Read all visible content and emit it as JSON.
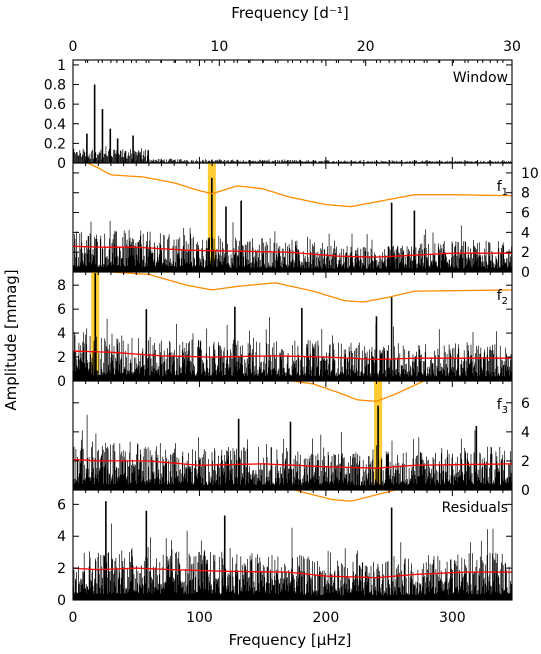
{
  "chart_data": {
    "type": "periodogram",
    "top_axis": {
      "label": "Frequency [d⁻¹]",
      "range": [
        0,
        30
      ],
      "ticks": [
        0,
        10,
        20,
        30
      ]
    },
    "bottom_axis": {
      "label": "Frequency [μHz]",
      "range": [
        0,
        347.2
      ],
      "ticks": [
        0,
        100,
        200,
        300
      ]
    },
    "ylabel": "Amplitude [mmag]",
    "colors": {
      "data": "#000000",
      "noise": "#ff0000",
      "noise_scaled": "#ff8c00",
      "highlight": "#ffcc33"
    },
    "panels": [
      {
        "name": "Window",
        "label": "Window",
        "ylim": [
          0,
          1.05
        ],
        "yticks": [
          0,
          0.2,
          0.4,
          0.6,
          0.8,
          1
        ],
        "tick_labels_side": "left",
        "peaks_uHz": [
          [
            17.1,
            0.8
          ],
          [
            11.0,
            0.3
          ],
          [
            23.3,
            0.55
          ],
          [
            29.5,
            0.35
          ],
          [
            35.3,
            0.25
          ],
          [
            41.5,
            0.12
          ],
          [
            47.5,
            0.28
          ],
          [
            53.5,
            0.08
          ],
          [
            59.5,
            0.13
          ]
        ]
      },
      {
        "name": "f1",
        "label": "f",
        "label_sub": "1",
        "ylim": [
          0,
          11
        ],
        "yticks": [
          0,
          2,
          4,
          6,
          8,
          10
        ],
        "tick_labels_side": "right",
        "highlight_uHz": 109.8,
        "peaks_uHz": [
          [
            109.8,
            9.5
          ],
          [
            121,
            6.6
          ],
          [
            133,
            7.2
          ],
          [
            252,
            7.0
          ],
          [
            270,
            6.2
          ]
        ],
        "noise": [
          [
            0,
            2.6
          ],
          [
            25,
            2.5
          ],
          [
            50,
            2.5
          ],
          [
            90,
            2.2
          ],
          [
            130,
            2.1
          ],
          [
            170,
            2.0
          ],
          [
            210,
            1.6
          ],
          [
            240,
            1.5
          ],
          [
            270,
            1.7
          ],
          [
            300,
            1.9
          ],
          [
            347,
            1.9
          ]
        ],
        "scaled_noise": [
          [
            8,
            11.2
          ],
          [
            20,
            10.5
          ],
          [
            30,
            9.8
          ],
          [
            55,
            9.6
          ],
          [
            80,
            9.0
          ],
          [
            100,
            8.2
          ],
          [
            110,
            7.9
          ],
          [
            130,
            8.7
          ],
          [
            150,
            8.4
          ],
          [
            170,
            7.6
          ],
          [
            200,
            6.8
          ],
          [
            220,
            6.6
          ],
          [
            245,
            7.2
          ],
          [
            270,
            7.8
          ],
          [
            300,
            7.8
          ],
          [
            347,
            7.7
          ]
        ]
      },
      {
        "name": "f2",
        "label": "f",
        "label_sub": "2",
        "ylim": [
          0,
          9.1
        ],
        "yticks": [
          0,
          2,
          4,
          6,
          8
        ],
        "tick_labels_side": "left",
        "highlight_uHz": 17.6,
        "peaks_uHz": [
          [
            17.6,
            9.0
          ],
          [
            58,
            6.0
          ],
          [
            128,
            6.2
          ],
          [
            181,
            6.1
          ],
          [
            240,
            5.4
          ],
          [
            252,
            7.1
          ]
        ],
        "noise": [
          [
            0,
            2.5
          ],
          [
            30,
            2.4
          ],
          [
            70,
            2.1
          ],
          [
            110,
            2.0
          ],
          [
            160,
            2.1
          ],
          [
            200,
            2.0
          ],
          [
            240,
            1.8
          ],
          [
            270,
            1.9
          ],
          [
            347,
            1.9
          ]
        ],
        "scaled_noise": [
          [
            15,
            9.2
          ],
          [
            60,
            8.9
          ],
          [
            90,
            8.0
          ],
          [
            110,
            7.6
          ],
          [
            130,
            7.9
          ],
          [
            160,
            8.2
          ],
          [
            190,
            7.5
          ],
          [
            215,
            6.7
          ],
          [
            230,
            6.6
          ],
          [
            250,
            7.0
          ],
          [
            270,
            7.5
          ],
          [
            347,
            7.6
          ]
        ]
      },
      {
        "name": "f3",
        "label": "f",
        "label_sub": "3",
        "ylim": [
          0,
          7.5
        ],
        "yticks": [
          0,
          2,
          4,
          6
        ],
        "tick_labels_side": "right",
        "highlight_uHz": 241.3,
        "peaks_uHz": [
          [
            241.3,
            5.8
          ],
          [
            131,
            4.9
          ],
          [
            172,
            4.7
          ],
          [
            319,
            4.4
          ]
        ],
        "noise": [
          [
            0,
            2.1
          ],
          [
            20,
            2.0
          ],
          [
            60,
            2.0
          ],
          [
            100,
            1.7
          ],
          [
            150,
            1.8
          ],
          [
            200,
            1.6
          ],
          [
            240,
            1.5
          ],
          [
            270,
            1.7
          ],
          [
            347,
            1.8
          ]
        ],
        "scaled_noise": [
          [
            165,
            7.6
          ],
          [
            190,
            7.3
          ],
          [
            210,
            6.7
          ],
          [
            225,
            6.2
          ],
          [
            240,
            6.1
          ],
          [
            255,
            6.6
          ],
          [
            270,
            7.2
          ],
          [
            280,
            7.6
          ]
        ]
      },
      {
        "name": "Residuals",
        "label": "Residuals",
        "ylim": [
          0,
          6.9
        ],
        "yticks": [
          0,
          2,
          4,
          6
        ],
        "tick_labels_side": "left",
        "peaks_uHz": [
          [
            252,
            5.8
          ],
          [
            58,
            5.6
          ],
          [
            26,
            6.2
          ],
          [
            120,
            5.3
          ]
        ],
        "noise": [
          [
            0,
            2.0
          ],
          [
            20,
            1.9
          ],
          [
            50,
            2.0
          ],
          [
            80,
            1.9
          ],
          [
            120,
            1.8
          ],
          [
            170,
            1.75
          ],
          [
            200,
            1.5
          ],
          [
            240,
            1.4
          ],
          [
            270,
            1.6
          ],
          [
            310,
            1.75
          ],
          [
            347,
            1.75
          ]
        ],
        "scaled_noise": [
          [
            170,
            7.0
          ],
          [
            190,
            6.6
          ],
          [
            205,
            6.3
          ],
          [
            220,
            6.2
          ],
          [
            240,
            6.6
          ],
          [
            260,
            7.0
          ]
        ]
      }
    ]
  }
}
